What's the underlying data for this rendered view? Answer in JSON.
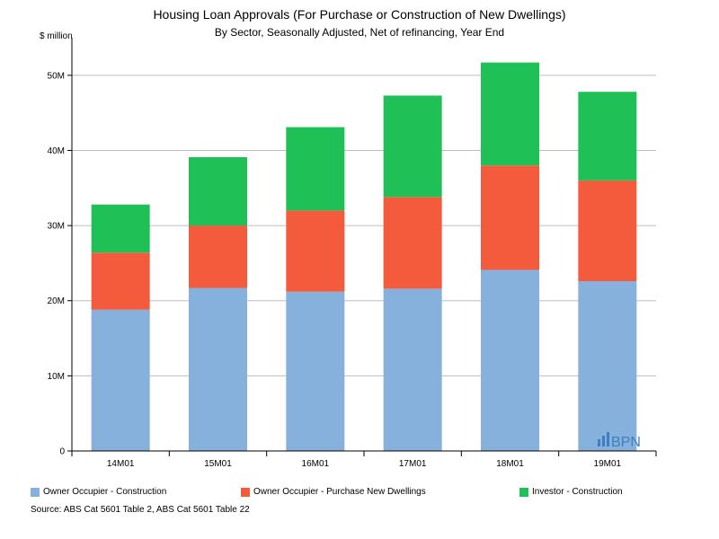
{
  "chart_data": {
    "type": "bar",
    "stacked": true,
    "title": "Housing Loan Approvals (For Purchase or Construction of New Dwellings)",
    "subtitle": "By Sector, Seasonally Adjusted, Net of refinancing, Year End",
    "ylabel": "$ million",
    "xlabel": "",
    "ylim": [
      0,
      55
    ],
    "yticks": [
      0,
      10,
      20,
      30,
      40,
      50
    ],
    "ytick_labels": [
      "0",
      "10M",
      "20M",
      "30M",
      "40M",
      "50M"
    ],
    "grid": true,
    "categories": [
      "14M01",
      "15M01",
      "16M01",
      "17M01",
      "18M01",
      "19M01"
    ],
    "series": [
      {
        "name": "Owner Occupier - Construction",
        "color": "#85b1dc",
        "values": [
          18.8,
          21.7,
          21.2,
          21.6,
          24.1,
          22.6
        ]
      },
      {
        "name": "Owner Occupier - Purchase New Dwellings",
        "color": "#f45a3c",
        "values": [
          7.6,
          8.3,
          10.8,
          12.2,
          13.9,
          13.4
        ]
      },
      {
        "name": "Investor - Construction",
        "color": "#1fc157",
        "values": [
          6.4,
          9.1,
          11.1,
          13.5,
          13.7,
          11.8
        ]
      }
    ],
    "legend_position": "bottom",
    "source": "Source: ABS Cat 5601 Table 2, ABS Cat 5601 Table 22",
    "watermark": "BPN"
  }
}
